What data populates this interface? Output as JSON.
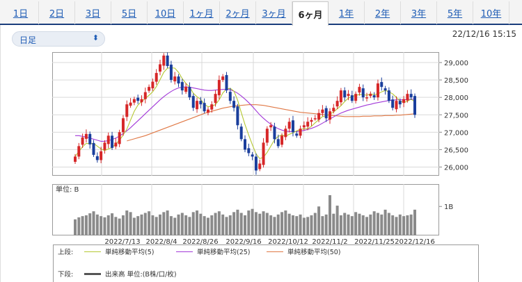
{
  "tabs": [
    {
      "label": "1日",
      "active": false
    },
    {
      "label": "2日",
      "active": false
    },
    {
      "label": "3日",
      "active": false
    },
    {
      "label": "5日",
      "active": false
    },
    {
      "label": "10日",
      "active": false
    },
    {
      "label": "1ヶ月",
      "active": false
    },
    {
      "label": "2ヶ月",
      "active": false
    },
    {
      "label": "3ヶ月",
      "active": false
    },
    {
      "label": "6ヶ月",
      "active": true
    },
    {
      "label": "1年",
      "active": false
    },
    {
      "label": "2年",
      "active": false
    },
    {
      "label": "3年",
      "active": false
    },
    {
      "label": "5年",
      "active": false
    },
    {
      "label": "10年",
      "active": false
    }
  ],
  "period_select": {
    "value": "日足",
    "icon": "chevron-updown-icon"
  },
  "timestamp": "22/12/16 15:15",
  "price_axis": {
    "ticks": [
      "29,000",
      "28,500",
      "28,000",
      "27,500",
      "27,000",
      "26,500",
      "26,000"
    ],
    "values": [
      29000,
      28500,
      28000,
      27500,
      27000,
      26500,
      26000
    ],
    "min": 25750,
    "max": 29300
  },
  "volume_panel": {
    "unit_label": "単位: B",
    "tick_label": "1B"
  },
  "x_axis": {
    "labels": [
      "2022/7/13",
      "2022/8/4",
      "2022/8/26",
      "2022/9/16",
      "2022/10/12",
      "2022/11/2",
      "2022/11/25",
      "2022/12/16"
    ]
  },
  "legend": {
    "upper_label": "上段:",
    "lower_label": "下段:",
    "ma5": "単純移動平均(5)",
    "ma25": "単純移動平均(25)",
    "ma50": "単純移動平均(50)",
    "volume": "出来高 単位:(B株/口/枚)"
  },
  "colors": {
    "up": "#d62728",
    "down": "#1a3e9c",
    "ma5": "#b5c832",
    "ma25": "#a238d8",
    "ma50": "#e07845",
    "volume": "#8a8a8a",
    "grid": "#d9d9d9"
  },
  "chart_data": {
    "type": "candlestick",
    "x_range": [
      "2022/7/1",
      "2022/12/16"
    ],
    "y_range": [
      25750,
      29300
    ],
    "close": [
      26300,
      26600,
      26850,
      26950,
      26650,
      26350,
      26200,
      26450,
      26700,
      26900,
      26550,
      26700,
      27000,
      27400,
      27800,
      27850,
      27950,
      27900,
      27950,
      28150,
      28300,
      28450,
      28700,
      28950,
      29200,
      28900,
      28500,
      28600,
      28400,
      28200,
      28300,
      28000,
      27700,
      27900,
      27800,
      27600,
      27650,
      27800,
      28100,
      28500,
      28600,
      28200,
      27900,
      27700,
      27200,
      26800,
      26500,
      26400,
      26300,
      25900,
      26100,
      26700,
      27100,
      27200,
      26800,
      26600,
      26900,
      27100,
      27300,
      27000,
      26900,
      27100,
      27200,
      27300,
      27350,
      27400,
      27550,
      27650,
      27400,
      27600,
      27700,
      27900,
      28200,
      28000,
      28100,
      27900,
      28100,
      28300,
      28000,
      28000,
      28100,
      28000,
      28400,
      28300,
      28200,
      27900,
      27700,
      27900,
      27800,
      27950,
      28100,
      28000,
      27500
    ],
    "ma5": [
      26300,
      26450,
      26580,
      26680,
      26670,
      26680,
      26600,
      26520,
      26470,
      26520,
      26560,
      26660,
      26770,
      26920,
      27090,
      27350,
      27600,
      27780,
      27880,
      27970,
      28060,
      28160,
      28310,
      28510,
      28720,
      28840,
      28850,
      28840,
      28720,
      28540,
      28400,
      28300,
      28120,
      28020,
      27940,
      27800,
      27730,
      27750,
      27790,
      27930,
      28130,
      28240,
      28260,
      28180,
      27920,
      27560,
      27220,
      26920,
      26640,
      26380,
      26240,
      26280,
      26420,
      26600,
      26780,
      26880,
      26920,
      26880,
      26940,
      26980,
      27040,
      27080,
      27100,
      27100,
      27170,
      27270,
      27360,
      27450,
      27470,
      27520,
      27580,
      27670,
      27760,
      27880,
      27980,
      28020,
      28060,
      28080,
      28080,
      28060,
      28100,
      28080,
      28100,
      28160,
      28200,
      28160,
      28100,
      28000,
      27900,
      27850,
      27890,
      27950,
      27870
    ],
    "ma25": [
      26900,
      26900,
      26880,
      26860,
      26830,
      26800,
      26770,
      26740,
      26740,
      26760,
      26790,
      26830,
      26890,
      26960,
      27040,
      27130,
      27230,
      27330,
      27430,
      27530,
      27630,
      27730,
      27830,
      27930,
      28020,
      28100,
      28170,
      28230,
      28270,
      28290,
      28300,
      28290,
      28270,
      28250,
      28230,
      28210,
      28200,
      28200,
      28210,
      28220,
      28230,
      28230,
      28220,
      28180,
      28120,
      28040,
      27950,
      27850,
      27740,
      27620,
      27500,
      27400,
      27310,
      27230,
      27160,
      27100,
      27060,
      27030,
      27020,
      27020,
      27020,
      27030,
      27050,
      27080,
      27110,
      27150,
      27200,
      27260,
      27320,
      27380,
      27440,
      27500,
      27550,
      27590,
      27630,
      27660,
      27690,
      27720,
      27750,
      27780,
      27800,
      27830,
      27850,
      27870,
      27890,
      27910,
      27920,
      27930,
      27930,
      27930,
      27940,
      27950,
      27950
    ],
    "ma50": [
      null,
      null,
      null,
      null,
      null,
      null,
      null,
      null,
      null,
      null,
      null,
      null,
      null,
      null,
      26750,
      26780,
      26810,
      26840,
      26870,
      26900,
      26940,
      26980,
      27020,
      27060,
      27100,
      27140,
      27180,
      27220,
      27260,
      27300,
      27340,
      27380,
      27420,
      27460,
      27500,
      27540,
      27570,
      27600,
      27630,
      27660,
      27690,
      27710,
      27730,
      27750,
      27760,
      27770,
      27780,
      27790,
      27790,
      27790,
      27780,
      27770,
      27750,
      27730,
      27710,
      27690,
      27670,
      27650,
      27630,
      27610,
      27590,
      27570,
      27560,
      27550,
      27540,
      27530,
      27520,
      27510,
      27500,
      27490,
      27480,
      27470,
      27460,
      27450,
      27450,
      27450,
      27450,
      27450,
      27460,
      27460,
      27460,
      27470,
      27470,
      27470,
      27480,
      27480,
      27480,
      27490,
      27490,
      27500,
      27510,
      27520,
      27530
    ],
    "volume_fraction": [
      0.4,
      0.45,
      0.48,
      0.5,
      0.55,
      0.6,
      0.52,
      0.48,
      0.45,
      0.5,
      0.55,
      0.46,
      0.42,
      0.5,
      0.62,
      0.58,
      0.44,
      0.48,
      0.52,
      0.56,
      0.6,
      0.5,
      0.46,
      0.52,
      0.58,
      0.62,
      0.48,
      0.44,
      0.52,
      0.56,
      0.5,
      0.46,
      0.58,
      0.62,
      0.54,
      0.48,
      0.44,
      0.5,
      0.56,
      0.6,
      0.52,
      0.46,
      0.5,
      0.58,
      0.64,
      0.56,
      0.5,
      0.62,
      0.66,
      0.58,
      0.54,
      0.6,
      0.56,
      0.5,
      0.46,
      0.52,
      0.58,
      0.62,
      0.54,
      0.5,
      0.48,
      0.52,
      0.44,
      0.46,
      0.5,
      0.56,
      0.72,
      0.48,
      0.52,
      1.0,
      0.54,
      0.74,
      0.5,
      0.56,
      0.52,
      0.48,
      0.58,
      0.54,
      0.5,
      0.46,
      0.52,
      0.6,
      0.56,
      0.52,
      0.64,
      0.56,
      0.5,
      0.46,
      0.52,
      0.48,
      0.5,
      0.52,
      0.64
    ]
  }
}
